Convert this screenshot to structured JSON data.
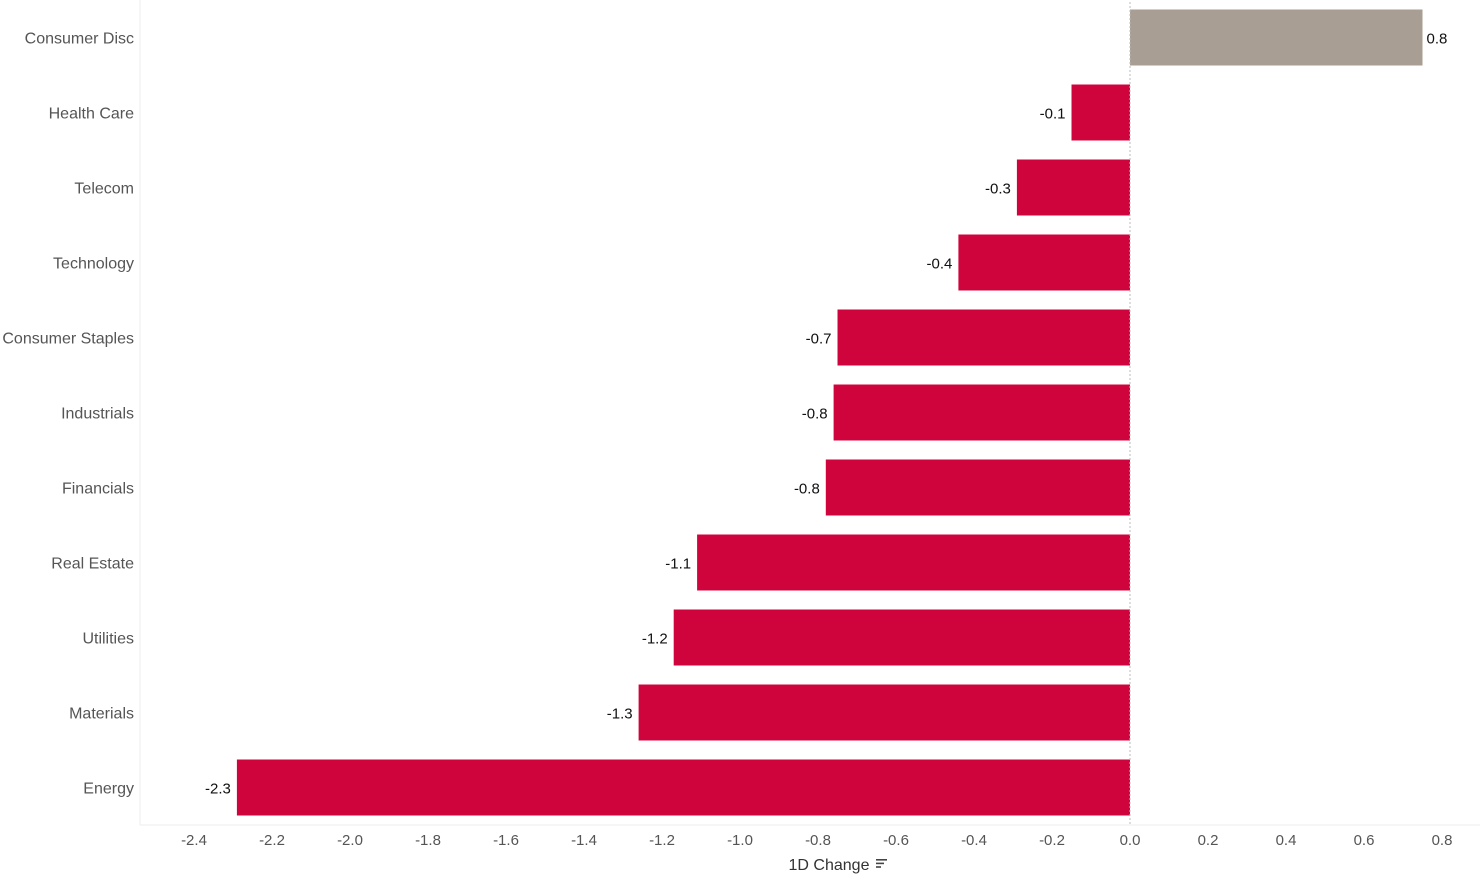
{
  "chart_data": {
    "type": "bar",
    "orientation": "horizontal",
    "categories": [
      "Consumer Disc",
      "Health Care",
      "Telecom",
      "Technology",
      "Consumer Staples",
      "Industrials",
      "Financials",
      "Real Estate",
      "Utilities",
      "Materials",
      "Energy"
    ],
    "values": [
      0.75,
      -0.15,
      -0.29,
      -0.44,
      -0.75,
      -0.76,
      -0.78,
      -1.11,
      -1.17,
      -1.26,
      -2.29
    ],
    "data_labels": [
      "0.8",
      "-0.1",
      "-0.3",
      "-0.4",
      "-0.7",
      "-0.8",
      "-0.8",
      "-1.1",
      "-1.2",
      "-1.3",
      "-2.3"
    ],
    "xlabel": "1D Change",
    "ylabel": "",
    "xlim": [
      -2.5,
      0.9
    ],
    "x_ticks": [
      "-2.4",
      "-2.2",
      "-2.0",
      "-1.8",
      "-1.6",
      "-1.4",
      "-1.2",
      "-1.0",
      "-0.8",
      "-0.6",
      "-0.4",
      "-0.2",
      "0.0",
      "0.2",
      "0.4",
      "0.6",
      "0.8"
    ],
    "x_tick_values": [
      -2.4,
      -2.2,
      -2.0,
      -1.8,
      -1.6,
      -1.4,
      -1.2,
      -1.0,
      -0.8,
      -0.6,
      -0.4,
      -0.2,
      0.0,
      0.2,
      0.4,
      0.6,
      0.8
    ],
    "colors": {
      "positive": "#a99e93",
      "negative": "#d0043c",
      "zero_line": "#bbbbbb"
    },
    "grid": false,
    "legend": "none",
    "sort_icon": "sort-descending-icon"
  }
}
